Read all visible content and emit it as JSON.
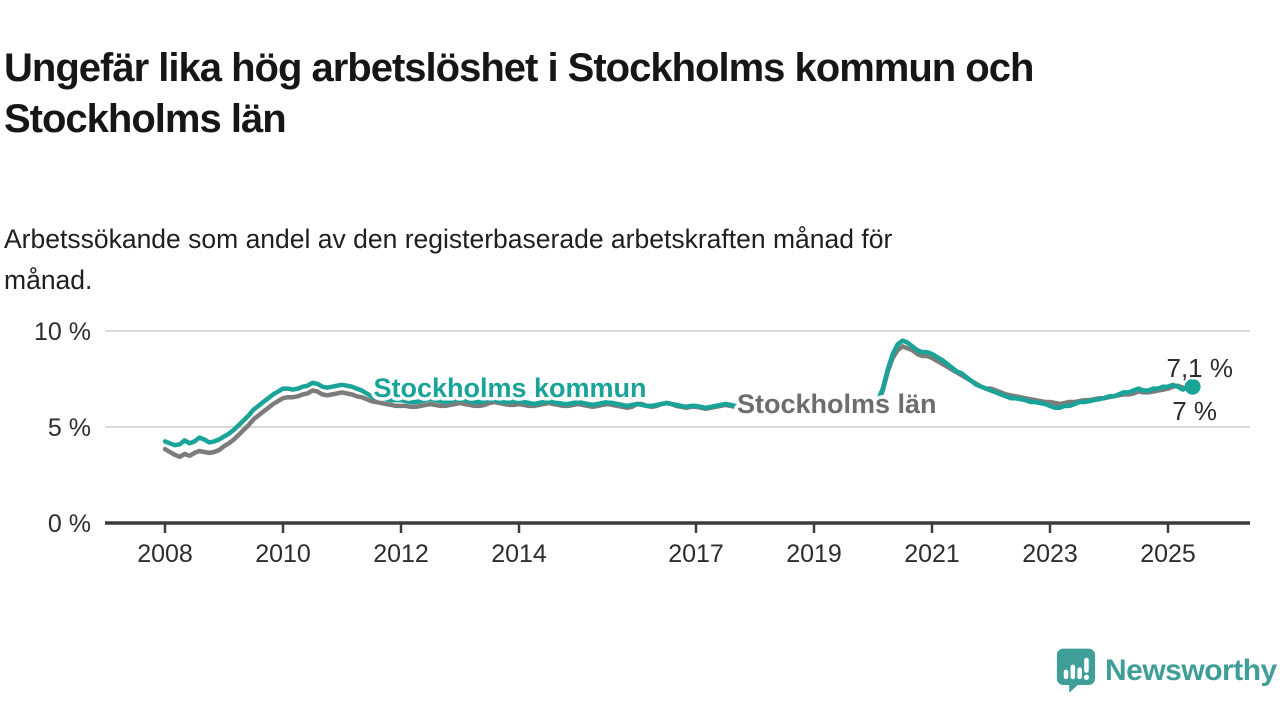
{
  "header": {
    "title": "Ungefär lika hög arbetslöshet i Stockholms kommun och Stockholms län",
    "title_line1": "Ungefär lika hög arbetslöshet i Stockholms kommun och",
    "title_line2": "Stockholms län",
    "subtitle_line1": "Arbetssökande som andel av den registerbaserade arbetskraften månad för",
    "subtitle_line2": "månad."
  },
  "footer": {
    "brand": "Newsworthy",
    "brand_color": "#3f9e97"
  },
  "chart_data": {
    "type": "line",
    "unit": "%",
    "x_start_year": 2008,
    "x_start_month": 1,
    "x_step_months": 1,
    "x_end_label": "mid 2025",
    "ylim": [
      0,
      10
    ],
    "grid": "horizontal-only",
    "yticks": [
      {
        "label": "0 %",
        "value": 0
      },
      {
        "label": "5 %",
        "value": 5
      },
      {
        "label": "10 %",
        "value": 10
      }
    ],
    "xticks": [
      {
        "label": "2008",
        "year": 2008
      },
      {
        "label": "2010",
        "year": 2010
      },
      {
        "label": "2012",
        "year": 2012
      },
      {
        "label": "2014",
        "year": 2014
      },
      {
        "label": "2017",
        "year": 2017
      },
      {
        "label": "2019",
        "year": 2019
      },
      {
        "label": "2021",
        "year": 2021
      },
      {
        "label": "2023",
        "year": 2023
      },
      {
        "label": "2025",
        "year": 2025
      }
    ],
    "legend_position": "inline-labels",
    "series": [
      {
        "id": "lan",
        "name": "Stockholms län",
        "color": "#7c7c7c",
        "label_color": "#6d6d6d",
        "end_label": "7 %",
        "end_value": 7.0,
        "end_dot": false,
        "values": [
          3.85,
          3.7,
          3.55,
          3.45,
          3.6,
          3.5,
          3.65,
          3.75,
          3.7,
          3.65,
          3.7,
          3.8,
          4.0,
          4.15,
          4.35,
          4.6,
          4.85,
          5.1,
          5.4,
          5.6,
          5.8,
          6.0,
          6.2,
          6.35,
          6.5,
          6.55,
          6.55,
          6.6,
          6.7,
          6.75,
          6.9,
          6.85,
          6.7,
          6.65,
          6.7,
          6.75,
          6.8,
          6.75,
          6.7,
          6.6,
          6.55,
          6.45,
          6.35,
          6.3,
          6.25,
          6.2,
          6.15,
          6.1,
          6.1,
          6.1,
          6.05,
          6.05,
          6.1,
          6.15,
          6.2,
          6.15,
          6.1,
          6.1,
          6.15,
          6.2,
          6.25,
          6.2,
          6.15,
          6.1,
          6.1,
          6.15,
          6.25,
          6.3,
          6.25,
          6.2,
          6.15,
          6.15,
          6.2,
          6.15,
          6.1,
          6.1,
          6.15,
          6.2,
          6.25,
          6.2,
          6.15,
          6.1,
          6.1,
          6.15,
          6.2,
          6.15,
          6.1,
          6.05,
          6.1,
          6.15,
          6.2,
          6.15,
          6.1,
          6.05,
          6.0,
          6.05,
          6.2,
          6.2,
          6.1,
          6.05,
          6.1,
          6.2,
          6.25,
          6.2,
          6.1,
          6.05,
          6.0,
          6.05,
          6.05,
          6.0,
          5.95,
          6.0,
          6.05,
          6.1,
          6.15,
          6.1,
          6.05,
          6.0,
          5.95,
          6.0,
          6.0,
          5.95,
          5.9,
          5.9,
          5.95,
          6.0,
          6.05,
          6.0,
          5.95,
          5.9,
          5.9,
          5.95,
          5.95,
          5.9,
          5.9,
          5.95,
          6.0,
          6.05,
          6.1,
          6.05,
          6.0,
          6.05,
          6.1,
          6.15,
          6.2,
          6.3,
          6.9,
          7.9,
          8.6,
          9.0,
          9.2,
          9.1,
          9.0,
          8.8,
          8.7,
          8.7,
          8.6,
          8.45,
          8.3,
          8.15,
          8.0,
          7.85,
          7.7,
          7.55,
          7.4,
          7.25,
          7.1,
          7.0,
          7.0,
          6.9,
          6.8,
          6.7,
          6.65,
          6.6,
          6.55,
          6.5,
          6.45,
          6.4,
          6.35,
          6.3,
          6.3,
          6.25,
          6.2,
          6.25,
          6.3,
          6.3,
          6.35,
          6.4,
          6.4,
          6.45,
          6.5,
          6.5,
          6.55,
          6.6,
          6.65,
          6.7,
          6.7,
          6.75,
          6.85,
          6.8,
          6.8,
          6.85,
          6.9,
          6.95,
          7.0,
          7.1,
          7.15,
          7.05,
          7.0,
          7.0
        ]
      },
      {
        "id": "kommun",
        "name": "Stockholms kommun",
        "color": "#1aa398",
        "label_color": "#1aa398",
        "end_label": "7,1 %",
        "end_value": 7.1,
        "end_dot": true,
        "values": [
          4.25,
          4.15,
          4.05,
          4.1,
          4.3,
          4.15,
          4.25,
          4.45,
          4.35,
          4.2,
          4.25,
          4.35,
          4.5,
          4.65,
          4.85,
          5.1,
          5.35,
          5.6,
          5.9,
          6.1,
          6.3,
          6.5,
          6.7,
          6.85,
          7.0,
          7.0,
          6.95,
          7.0,
          7.1,
          7.15,
          7.3,
          7.25,
          7.1,
          7.05,
          7.1,
          7.15,
          7.2,
          7.15,
          7.1,
          7.0,
          6.9,
          6.75,
          6.6,
          6.5,
          6.5,
          6.45,
          6.4,
          6.4,
          6.4,
          6.35,
          6.3,
          6.3,
          6.35,
          6.4,
          6.45,
          6.4,
          6.35,
          6.3,
          6.35,
          6.4,
          6.45,
          6.4,
          6.35,
          6.3,
          6.3,
          6.35,
          6.45,
          6.4,
          6.35,
          6.3,
          6.3,
          6.35,
          6.35,
          6.3,
          6.25,
          6.2,
          6.25,
          6.3,
          6.35,
          6.3,
          6.25,
          6.2,
          6.2,
          6.25,
          6.3,
          6.25,
          6.2,
          6.15,
          6.2,
          6.25,
          6.3,
          6.25,
          6.2,
          6.15,
          6.1,
          6.15,
          6.2,
          6.15,
          6.1,
          6.1,
          6.15,
          6.2,
          6.25,
          6.2,
          6.15,
          6.1,
          6.05,
          6.1,
          6.1,
          6.05,
          6.0,
          6.05,
          6.1,
          6.15,
          6.2,
          6.15,
          6.1,
          6.05,
          6.0,
          6.05,
          6.1,
          6.05,
          6.0,
          5.95,
          6.0,
          6.05,
          6.1,
          6.05,
          6.0,
          5.95,
          5.9,
          5.95,
          6.0,
          5.95,
          5.9,
          5.95,
          6.0,
          6.05,
          6.1,
          6.1,
          6.05,
          6.1,
          6.15,
          6.2,
          6.3,
          6.4,
          7.0,
          8.0,
          8.8,
          9.3,
          9.5,
          9.4,
          9.2,
          9.0,
          8.9,
          8.9,
          8.8,
          8.65,
          8.5,
          8.3,
          8.1,
          7.9,
          7.8,
          7.6,
          7.4,
          7.2,
          7.1,
          7.0,
          6.9,
          6.8,
          6.7,
          6.6,
          6.5,
          6.5,
          6.45,
          6.4,
          6.3,
          6.3,
          6.25,
          6.2,
          6.1,
          6.0,
          6.0,
          6.1,
          6.1,
          6.2,
          6.3,
          6.3,
          6.35,
          6.4,
          6.45,
          6.5,
          6.6,
          6.6,
          6.7,
          6.8,
          6.8,
          6.9,
          7.0,
          6.9,
          6.9,
          7.0,
          7.0,
          7.1,
          7.1,
          7.2,
          7.1,
          6.95,
          7.05,
          7.1
        ]
      }
    ],
    "colors": {
      "grid": "#d9d9d9",
      "axis": "#3c3c3c",
      "axis_text": "#2d2d2d"
    }
  }
}
